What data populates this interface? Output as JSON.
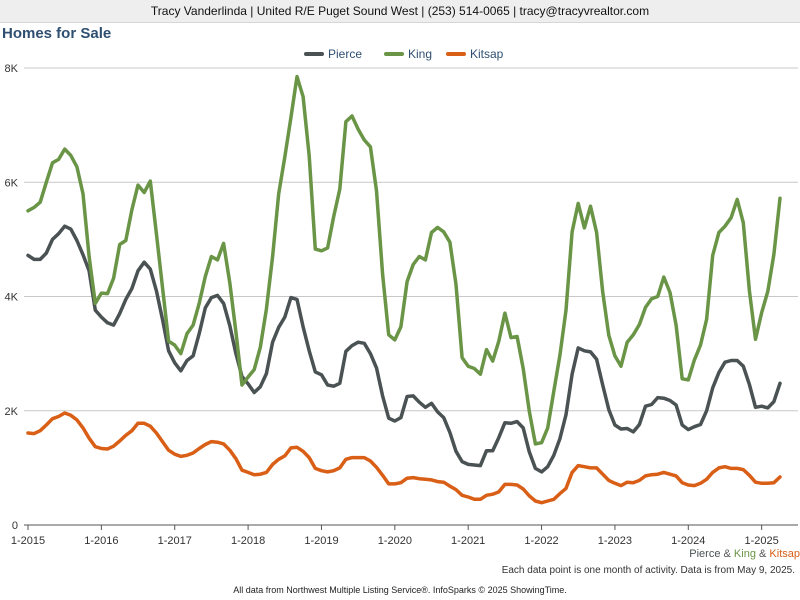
{
  "header": {
    "contact": "Tracy Vanderlinda | United R/E Puget Sound West | (253) 514-0065 | tracy@tracyvrealtor.com"
  },
  "page_title": "Homes for Sale",
  "footer": {
    "series_labels": [
      "Pierce",
      "King",
      "Kitsap"
    ],
    "separator": "&",
    "note": "Each data point is one month of activity. Data is from May 9, 2025.",
    "credit": "All data from Northwest Multiple Listing Service®. InfoSparks © 2025 ShowingTime."
  },
  "chart_data": {
    "type": "line",
    "title": "Homes for Sale",
    "xlabel": "",
    "ylabel": "",
    "x_start": "2015-01",
    "x_end": "2025-04",
    "x_ticks": [
      "1-2015",
      "1-2016",
      "1-2017",
      "1-2018",
      "1-2019",
      "1-2020",
      "1-2021",
      "1-2022",
      "1-2023",
      "1-2024",
      "1-2025"
    ],
    "ylim": [
      0,
      8000
    ],
    "y_ticks": [
      0,
      2000,
      4000,
      6000,
      8000
    ],
    "y_tick_labels": [
      "0",
      "2K",
      "4K",
      "6K",
      "8K"
    ],
    "grid": true,
    "legend_position": "top-center",
    "series": [
      {
        "name": "Pierce",
        "color": "#4a5254",
        "values": [
          4720,
          4650,
          4650,
          4760,
          5000,
          5100,
          5230,
          5180,
          4980,
          4730,
          4450,
          3760,
          3640,
          3540,
          3500,
          3700,
          3950,
          4140,
          4450,
          4600,
          4480,
          4100,
          3600,
          3050,
          2840,
          2700,
          2880,
          2960,
          3350,
          3800,
          3980,
          4020,
          3880,
          3490,
          3000,
          2600,
          2470,
          2320,
          2420,
          2650,
          3200,
          3460,
          3640,
          3980,
          3950,
          3470,
          3050,
          2680,
          2630,
          2450,
          2430,
          2480,
          3040,
          3140,
          3200,
          3180,
          3000,
          2750,
          2260,
          1870,
          1820,
          1880,
          2250,
          2260,
          2150,
          2060,
          2130,
          1980,
          1880,
          1620,
          1290,
          1110,
          1060,
          1050,
          1040,
          1300,
          1300,
          1530,
          1790,
          1780,
          1810,
          1700,
          1280,
          990,
          930,
          1020,
          1220,
          1510,
          1930,
          2640,
          3100,
          3050,
          3030,
          2900,
          2450,
          2020,
          1750,
          1680,
          1690,
          1630,
          1760,
          2080,
          2110,
          2230,
          2220,
          2180,
          2100,
          1750,
          1670,
          1720,
          1760,
          2000,
          2400,
          2670,
          2850,
          2880,
          2880,
          2780,
          2460,
          2060,
          2080,
          2050,
          2160,
          2480
        ]
      },
      {
        "name": "King",
        "color": "#6a9446",
        "values": [
          5500,
          5560,
          5650,
          6000,
          6340,
          6400,
          6580,
          6470,
          6270,
          5800,
          4700,
          3880,
          4060,
          4050,
          4320,
          4910,
          4980,
          5520,
          5950,
          5820,
          6020,
          5100,
          4160,
          3220,
          3150,
          3000,
          3350,
          3500,
          3880,
          4350,
          4700,
          4640,
          4930,
          4240,
          3380,
          2450,
          2590,
          2720,
          3110,
          3780,
          4700,
          5800,
          6440,
          7130,
          7850,
          7500,
          6460,
          4830,
          4800,
          4850,
          5400,
          5880,
          7060,
          7160,
          6930,
          6740,
          6620,
          5850,
          4390,
          3330,
          3240,
          3470,
          4260,
          4560,
          4700,
          4640,
          5120,
          5210,
          5130,
          4950,
          4210,
          2930,
          2780,
          2740,
          2640,
          3070,
          2870,
          3220,
          3710,
          3280,
          3300,
          2740,
          1990,
          1420,
          1440,
          1700,
          2340,
          2970,
          3760,
          5130,
          5630,
          5200,
          5580,
          5120,
          4080,
          3320,
          2960,
          2780,
          3200,
          3330,
          3510,
          3810,
          3960,
          4000,
          4340,
          4070,
          3500,
          2560,
          2540,
          2890,
          3150,
          3600,
          4720,
          5120,
          5230,
          5380,
          5700,
          5290,
          4100,
          3250,
          3720,
          4090,
          4740,
          5720
        ]
      },
      {
        "name": "Kitsap",
        "color": "#d95e16",
        "values": [
          1610,
          1600,
          1650,
          1750,
          1860,
          1900,
          1960,
          1920,
          1840,
          1700,
          1520,
          1370,
          1340,
          1330,
          1380,
          1470,
          1570,
          1650,
          1780,
          1780,
          1730,
          1610,
          1460,
          1310,
          1240,
          1200,
          1220,
          1260,
          1340,
          1410,
          1460,
          1450,
          1420,
          1310,
          1160,
          960,
          920,
          880,
          890,
          920,
          1060,
          1150,
          1210,
          1350,
          1360,
          1290,
          1180,
          990,
          950,
          930,
          950,
          1000,
          1150,
          1180,
          1180,
          1180,
          1120,
          1010,
          870,
          720,
          720,
          740,
          820,
          830,
          810,
          800,
          790,
          760,
          750,
          680,
          620,
          520,
          490,
          450,
          450,
          520,
          540,
          580,
          710,
          710,
          700,
          630,
          510,
          420,
          390,
          420,
          450,
          550,
          640,
          920,
          1040,
          1020,
          1000,
          1000,
          890,
          780,
          730,
          690,
          750,
          740,
          780,
          860,
          880,
          890,
          920,
          890,
          860,
          740,
          700,
          690,
          730,
          800,
          920,
          1000,
          1020,
          990,
          990,
          970,
          870,
          750,
          730,
          730,
          740,
          840
        ]
      }
    ]
  }
}
